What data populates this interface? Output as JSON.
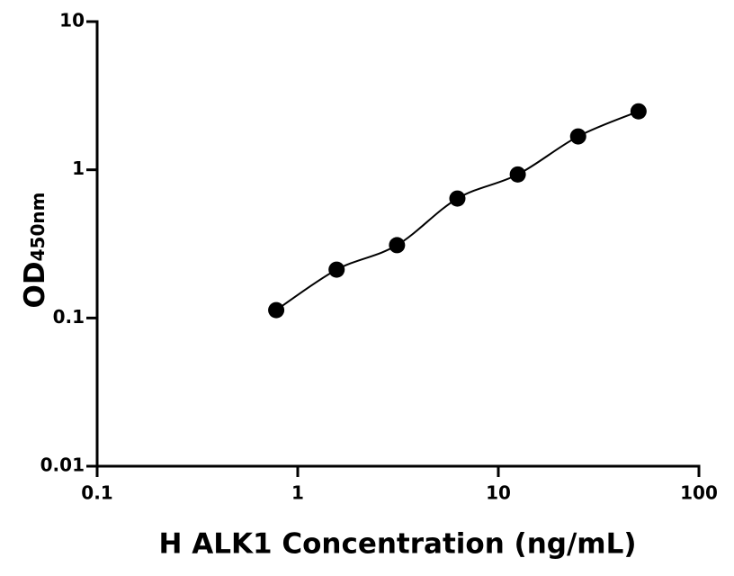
{
  "chart_data": {
    "type": "scatter",
    "x_label": "H ALK1 Concentration (ng/mL)",
    "y_label": "OD",
    "y_label_sub": "450nm",
    "x": [
      0.78125,
      1.5625,
      3.125,
      6.25,
      12.5,
      25,
      50
    ],
    "values": [
      0.113,
      0.212,
      0.31,
      0.64,
      0.93,
      1.68,
      2.48
    ],
    "color": "#000000",
    "fit_line": true,
    "x_scale": "log",
    "y_scale": "log",
    "xlim": [
      0.1,
      100
    ],
    "xticks": [
      0.1,
      1,
      10,
      100
    ],
    "ylim": [
      0.01,
      10
    ],
    "yticks": [
      0.01,
      0.1,
      1,
      10
    ]
  }
}
